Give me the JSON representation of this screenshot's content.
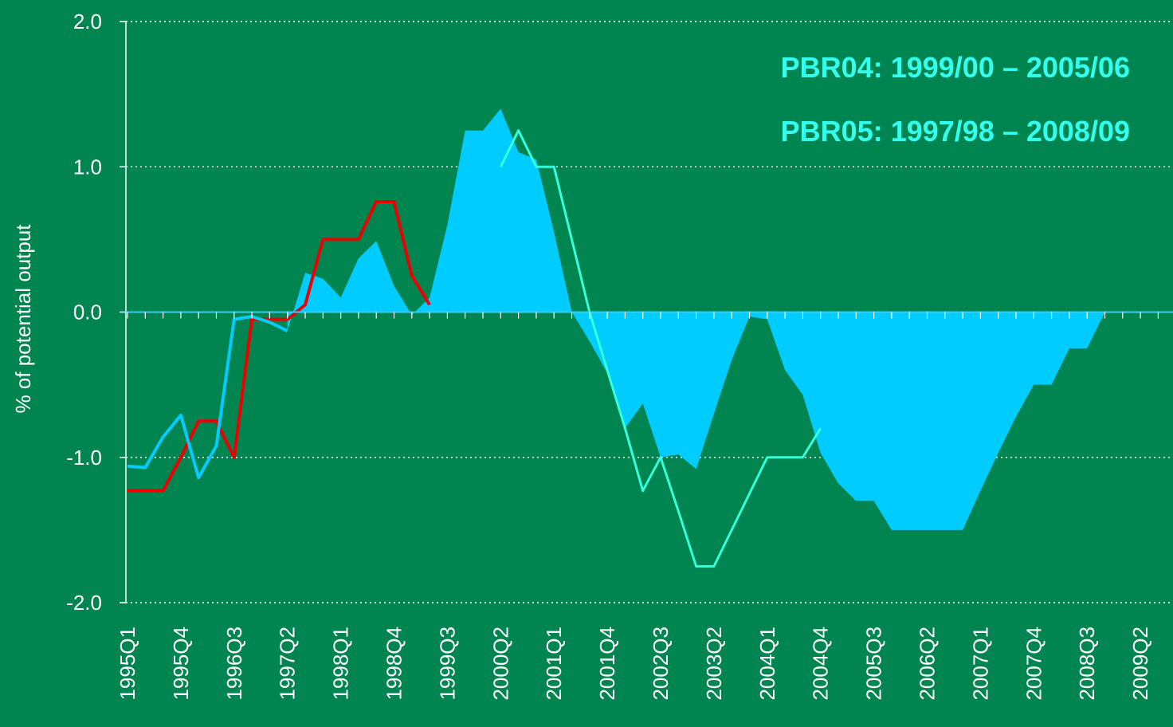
{
  "chart_data": {
    "type": "line",
    "y_label": "% of potential output",
    "annotations": [
      "PBR04: 1999/00 – 2005/06",
      "PBR05: 1997/98 – 2008/09"
    ],
    "annotation_color": "#33ffee",
    "categories": [
      "1995Q1",
      null,
      null,
      "1995Q4",
      null,
      null,
      "1996Q3",
      null,
      null,
      "1997Q2",
      null,
      null,
      "1998Q1",
      null,
      null,
      "1998Q4",
      null,
      null,
      "1999Q3",
      null,
      null,
      "2000Q2",
      null,
      null,
      "2001Q1",
      null,
      null,
      "2001Q4",
      null,
      null,
      "2002Q3",
      null,
      null,
      "2003Q2",
      null,
      null,
      "2004Q1",
      null,
      null,
      "2004Q4",
      null,
      null,
      "2005Q3",
      null,
      null,
      "2006Q2",
      null,
      null,
      "2007Q1",
      null,
      null,
      "2007Q4",
      null,
      null,
      "2008Q3",
      null,
      null,
      "2009Q2",
      null,
      null
    ],
    "ylim": [
      -2,
      2
    ],
    "yticks": [
      {
        "value": -2,
        "label": "-2.0"
      },
      {
        "value": -1,
        "label": "-1.0"
      },
      {
        "value": 0,
        "label": "0.0"
      },
      {
        "value": 1,
        "label": "1.0"
      },
      {
        "value": 2,
        "label": "2.0"
      }
    ],
    "grid": true,
    "series": [
      {
        "kind": "area",
        "color": "#00ccff",
        "values": [
          null,
          null,
          null,
          null,
          null,
          null,
          null,
          null,
          null,
          -0.13,
          0.27,
          0.23,
          0.1,
          0.37,
          0.49,
          0.18,
          -0.02,
          0.1,
          0.6,
          1.25,
          1.25,
          1.4,
          1.1,
          1.05,
          0.55,
          0.0,
          -0.2,
          -0.42,
          -0.8,
          -0.63,
          -1.0,
          -0.98,
          -1.08,
          -0.7,
          -0.33,
          -0.03,
          -0.05,
          -0.4,
          -0.57,
          -0.97,
          -1.18,
          -1.3,
          -1.3,
          -1.5,
          -1.5,
          -1.5,
          -1.5,
          -1.5,
          -1.23,
          -0.97,
          -0.72,
          -0.5,
          -0.5,
          -0.25,
          -0.25,
          0.0,
          0.0,
          0.0,
          0.0,
          0.0
        ]
      },
      {
        "kind": "line",
        "color": "#ee0000",
        "values": [
          -1.23,
          -1.23,
          -1.23,
          -1.0,
          -0.75,
          -0.75,
          -1.0,
          -0.05,
          -0.05,
          -0.05,
          0.05,
          0.5,
          0.5,
          0.5,
          0.76,
          0.76,
          0.25,
          0.05,
          null,
          null,
          null,
          null,
          null,
          null,
          null,
          null,
          null,
          null,
          null,
          null,
          null,
          null,
          null,
          null,
          null,
          null,
          null,
          null,
          null,
          null,
          null,
          null,
          null,
          null,
          null,
          null,
          null,
          null,
          null,
          null,
          null,
          null,
          null,
          null,
          null,
          null,
          null,
          null,
          null,
          null
        ]
      },
      {
        "kind": "line",
        "color": "#00ccff",
        "values": [
          -1.06,
          -1.07,
          -0.86,
          -0.71,
          -1.14,
          -0.92,
          -0.05,
          -0.03,
          -0.07,
          -0.13,
          null,
          null,
          null,
          null,
          null,
          null,
          null,
          null,
          null,
          null,
          null,
          null,
          null,
          null,
          null,
          null,
          null,
          null,
          null,
          null,
          null,
          null,
          null,
          null,
          null,
          null,
          null,
          null,
          null,
          null,
          null,
          null,
          null,
          null,
          null,
          null,
          null,
          null,
          null,
          null,
          null,
          null,
          null,
          null,
          null,
          null,
          null,
          null,
          null,
          null
        ]
      },
      {
        "kind": "line",
        "color": "#33ffdd",
        "values": [
          null,
          null,
          null,
          null,
          null,
          null,
          null,
          null,
          null,
          null,
          null,
          null,
          null,
          null,
          null,
          null,
          null,
          null,
          null,
          null,
          null,
          1.0,
          1.25,
          1.0,
          1.0,
          0.5,
          0.0,
          -0.4,
          -0.8,
          -1.23,
          -1.0,
          -1.37,
          -1.75,
          -1.75,
          -1.5,
          -1.25,
          -1.0,
          -1.0,
          -1.0,
          -0.8,
          null,
          null,
          null,
          null,
          null,
          null,
          null,
          null,
          null,
          null,
          null,
          null,
          null,
          null,
          null,
          null,
          null,
          null,
          null,
          null
        ]
      }
    ]
  }
}
